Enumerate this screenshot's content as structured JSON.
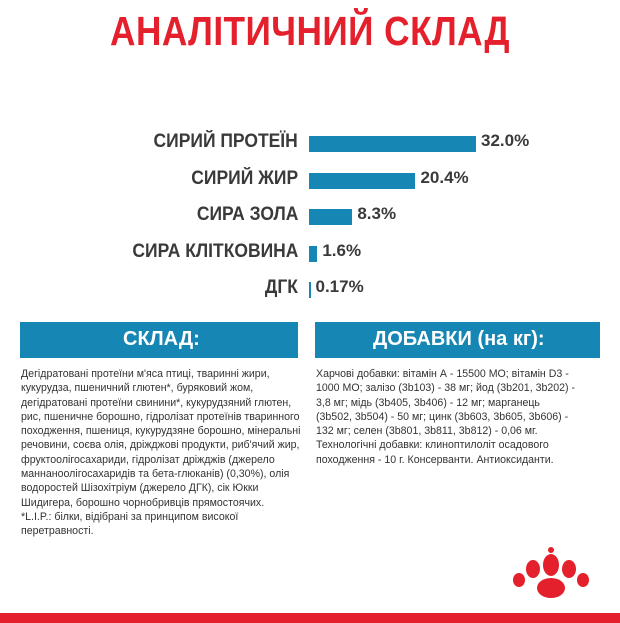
{
  "title": "АНАЛІТИЧНИЙ СКЛАД",
  "analysis": [
    {
      "label": "СИРИЙ ПРОТЕЇН",
      "value": 32.0,
      "display": "32.0%"
    },
    {
      "label": "СИРИЙ ЖИР",
      "value": 20.4,
      "display": "20.4%"
    },
    {
      "label": "СИРА ЗОЛА",
      "value": 8.3,
      "display": "8.3%"
    },
    {
      "label": "СИРА КЛІТКОВИНА",
      "value": 1.6,
      "display": "1.6%"
    },
    {
      "label": "ДГК",
      "value": 0.17,
      "display": "0.17%"
    }
  ],
  "composition": {
    "heading": "СКЛАД:",
    "text": "Дегідратовані протеїни м'яса птиці, тваринні жири, кукурудза, пшеничний глютен*, бурякoвий жом, дегідратовані протеїни свинини*, кукурудзяний глютен, рис, пшеничне борошно, гідролізат протеїнів тваринного походження, пшениця, кукурудзяне борошно, мінеральні речовини, соєва олія, дріжджові продукти, риб'ячий жир, фруктоолігосахариди, гідролізат дріжджів (джерело маннаноолігосахаридів та бета-глюканів) (0,30%), олія водоростей Шізохітріум (джерело ДГК), сік Юкки Шидигера, борошно чорнобривців прямостоячих.",
    "note": "*L.I.P.: білки, відібрані за принципом високої перетравності."
  },
  "additives": {
    "heading": "ДОБАВКИ (на кг):",
    "text": "Харчові добавки: вітамін А - 15500 МО; вітамін D3 - 1000 МО; залізо (3b103) - 38 мг; йод (3b201, 3b202) - 3,8 мг; мідь (3b405, 3b406) - 12 мг; марганець (3b502, 3b504) - 50 мг; цинк (3b603, 3b605, 3b606) - 132 мг; селен (3b801, 3b811, 3b812) - 0,06 мг. Технологічні добавки: клиноптилоліт осадового походження - 10 г. Консерванти. Антиоксиданти."
  },
  "colors": {
    "accent_red": "#e3202c",
    "bar_blue": "#1686b5"
  },
  "logo": "royal-canin-crown-logo"
}
